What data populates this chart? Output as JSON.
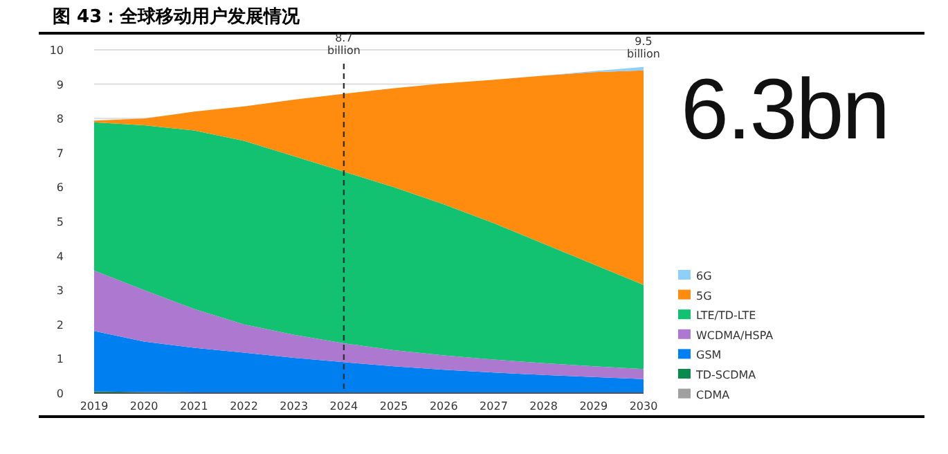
{
  "chart_data": {
    "type": "area",
    "title": "图 43：全球移动用户发展情况",
    "x": [
      2019,
      2020,
      2021,
      2022,
      2023,
      2024,
      2025,
      2026,
      2027,
      2028,
      2029,
      2030
    ],
    "stacked": true,
    "series": [
      {
        "name": "CDMA",
        "color": "#a0a0a0",
        "values": [
          null,
          null,
          null,
          null,
          null,
          null,
          null,
          null,
          null,
          null,
          null,
          null
        ]
      },
      {
        "name": "TD-SCDMA",
        "color": "#0a8a4c",
        "values": [
          0.05,
          0.03,
          0.02,
          0.01,
          0.01,
          0,
          0,
          0,
          0,
          0,
          0,
          0
        ]
      },
      {
        "name": "GSM",
        "color": "#0080f0",
        "values": [
          1.76,
          1.47,
          1.3,
          1.17,
          1.02,
          0.9,
          0.78,
          0.68,
          0.6,
          0.53,
          0.47,
          0.41
        ]
      },
      {
        "name": "WCDMA/HSPA",
        "color": "#ad78d0",
        "values": [
          1.76,
          1.5,
          1.13,
          0.82,
          0.67,
          0.55,
          0.47,
          0.42,
          0.38,
          0.34,
          0.31,
          0.29
        ]
      },
      {
        "name": "LTE/TD-LTE",
        "color": "#13c270",
        "values": [
          4.32,
          4.8,
          5.2,
          5.35,
          5.2,
          5.0,
          4.75,
          4.4,
          3.97,
          3.48,
          2.97,
          2.45
        ]
      },
      {
        "name": "5G",
        "color": "#ff8c0f",
        "values": [
          0.05,
          0.2,
          0.55,
          1.0,
          1.65,
          2.27,
          2.88,
          3.52,
          4.18,
          4.9,
          5.6,
          6.25
        ]
      },
      {
        "name": "6G",
        "color": "#8fd0fa",
        "values": [
          0,
          0,
          0,
          0,
          0,
          0,
          0,
          0,
          0,
          0,
          0.03,
          0.1
        ]
      }
    ],
    "xlim": [
      2019,
      2030
    ],
    "xticks": [
      2019,
      2020,
      2021,
      2022,
      2023,
      2024,
      2025,
      2026,
      2027,
      2028,
      2029,
      2030
    ],
    "ylim": [
      0,
      10
    ],
    "yticks": [
      0,
      1,
      2,
      3,
      4,
      5,
      6,
      7,
      8,
      9,
      10
    ],
    "grid": "y",
    "legend": "right",
    "ref_lines": [
      {
        "axis": "x",
        "value": 2024,
        "label": "8.7 billion",
        "line_style": "dashed",
        "color": "#333333"
      }
    ],
    "annotations": [
      {
        "text": "9.5 billion",
        "x": 2030,
        "y": 9.5
      },
      "6.3bn"
    ]
  }
}
